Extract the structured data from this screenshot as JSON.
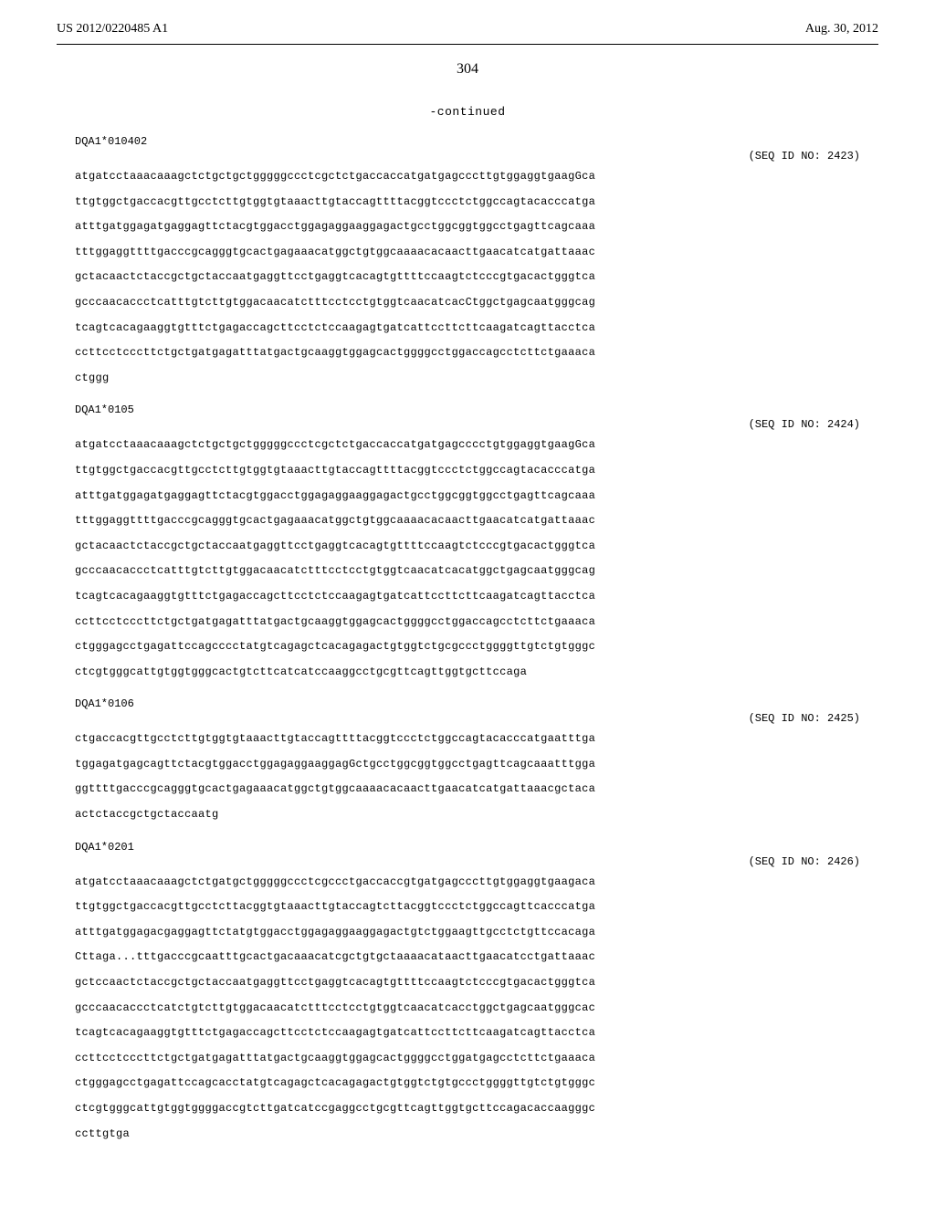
{
  "header": {
    "publication_number": "US 2012/0220485 A1",
    "date": "Aug. 30, 2012"
  },
  "page_number": "304",
  "continued_label": "-continued",
  "entries": [
    {
      "allele": "DQA1*010402",
      "seq_id": "(SEQ ID NO: 2423)",
      "sequence": "atgatcctaaacaaagctctgctgctgggggccctcgctctgaccaccatgatgagcccttgtggaggtgaagGca\nttgtggctgaccacgttgcctcttgtggtgtaaacttgtaccagttttacggtccctctggccagtacacccatga\natttgatggagatgaggagttctacgtggacctggagaggaaggagactgcctggcggtggcctgagttcagcaaa\ntttggaggttttgacccgcagggtgcactgagaaacatggctgtggcaaaacacaacttgaacatcatgattaaac\ngctacaactctaccgctgctaccaatgaggttcctgaggtcacagtgttttccaagtctcccgtgacactgggtca\ngcccaacaccctcatttgtcttgtggacaacatctttcctcctgtggtcaacatcacCtggctgagcaatgggcag\ntcagtcacagaaggtgtttctgagaccagcttcctctccaagagtgatcattccttcttcaagatcagttacctca\nccttcctcccttctgctgatgagatttatgactgcaaggtggagcactggggcctggaccagcctcttctgaaaca\nctggg"
    },
    {
      "allele": "DQA1*0105",
      "seq_id": "(SEQ ID NO: 2424)",
      "sequence": "atgatcctaaacaaagctctgctgctgggggccctcgctctgaccaccatgatgagcccctgtggaggtgaagGca\nttgtggctgaccacgttgcctcttgtggtgtaaacttgtaccagttttacggtccctctggccagtacacccatga\natttgatggagatgaggagttctacgtggacctggagaggaaggagactgcctggcggtggcctgagttcagcaaa\ntttggaggttttgacccgcagggtgcactgagaaacatggctgtggcaaaacacaacttgaacatcatgattaaac\ngctacaactctaccgctgctaccaatgaggttcctgaggtcacagtgttttccaagtctcccgtgacactgggtca\ngcccaacaccctcatttgtcttgtggacaacatctttcctcctgtggtcaacatcacatggctgagcaatgggcag\ntcagtcacagaaggtgtttctgagaccagcttcctctccaagagtgatcattccttcttcaagatcagttacctca\nccttcctcccttctgctgatgagatttatgactgcaaggtggagcactggggcctggaccagcctcttctgaaaca\nctgggagcctgagattccagcccctatgtcagagctcacagagactgtggtctgcgccctggggttgtctgtgggc\nctcgtgggcattgtggtgggcactgtcttcatcatccaaggcctgcgttcagttggtgcttccaga"
    },
    {
      "allele": "DQA1*0106",
      "seq_id": "(SEQ ID NO: 2425)",
      "sequence": "ctgaccacgttgcctcttgtggtgtaaacttgtaccagttttacggtccctctggccagtacacccatgaatttga\ntggagatgagcagttctacgtggacctggagaggaaggagGctgcctggcggtggcctgagttcagcaaatttgga\nggttttgacccgcagggtgcactgagaaacatggctgtggcaaaacacaacttgaacatcatgattaaacgctaca\nactctaccgctgctaccaatg"
    },
    {
      "allele": "DQA1*0201",
      "seq_id": "(SEQ ID NO: 2426)",
      "sequence": "atgatcctaaacaaagctctgatgctgggggccctcgccctgaccaccgtgatgagcccttgtggaggtgaagaca\nttgtggctgaccacgttgcctcttacggtgtaaacttgtaccagtcttacggtccctctggccagttcacccatga\natttgatggagacgaggagttctatgtggacctggagaggaaggagactgtctggaagttgcctctgttccacaga\nCttaga...tttgacccgcaatttgcactgacaaacatcgctgtgctaaaacataacttgaacatcctgattaaac\ngctccaactctaccgctgctaccaatgaggttcctgaggtcacagtgttttccaagtctcccgtgacactgggtca\ngcccaacaccctcatctgtcttgtggacaacatctttcctcctgtggtcaacatcacctggctgagcaatgggcac\ntcagtcacagaaggtgtttctgagaccagcttcctctccaagagtgatcattccttcttcaagatcagttacctca\nccttcctcccttctgctgatgagatttatgactgcaaggtggagcactggggcctggatgagcctcttctgaaaca\nctgggagcctgagattccagcacctatgtcagagctcacagagactgtggtctgtgccctggggttgtctgtgggc\nctcgtgggcattgtggtggggaccgtcttgatcatccgaggcctgcgttcagttggtgcttccagacaccaagggc\nccttgtga"
    }
  ]
}
